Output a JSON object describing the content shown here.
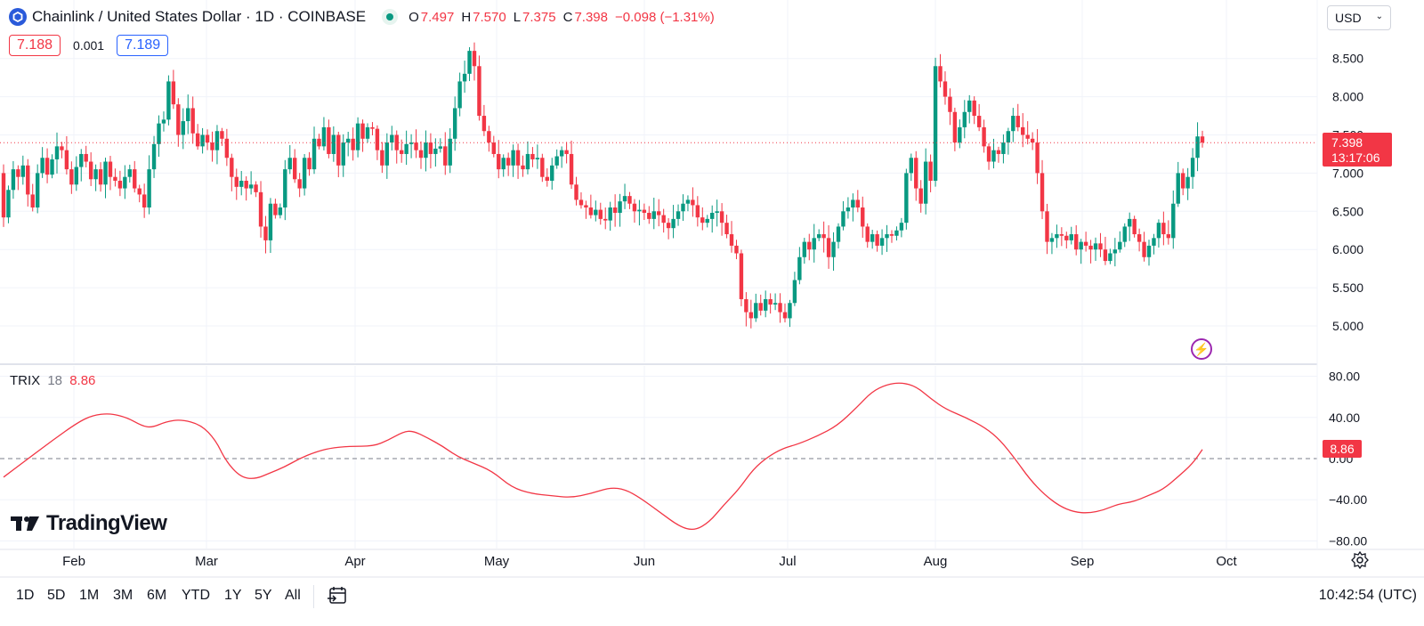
{
  "header": {
    "title": "Chainlink / United States Dollar · 1D · COINBASE",
    "ohlc": [
      {
        "key": "O",
        "value": "7.497"
      },
      {
        "key": "H",
        "value": "7.570"
      },
      {
        "key": "L",
        "value": "7.375"
      },
      {
        "key": "C",
        "value": "7.398"
      }
    ],
    "change": "−0.098 (−1.31%)",
    "status_color": "#089981"
  },
  "price_boxes": {
    "bid": "7.188",
    "spread": "0.001",
    "ask": "7.189"
  },
  "currency": {
    "label": "USD"
  },
  "last_price": {
    "price": "7.398",
    "countdown": "13:17:06"
  },
  "indicator": {
    "name": "TRIX",
    "period": "18",
    "value": "8.86"
  },
  "brand": {
    "name": "TradingView"
  },
  "timeframes": [
    "1D",
    "5D",
    "1M",
    "3M",
    "6M",
    "YTD",
    "1Y",
    "5Y",
    "All"
  ],
  "clock": "10:42:54 (UTC)",
  "colors": {
    "up": "#089981",
    "down": "#f23645",
    "trix": "#f23645"
  },
  "chart_data": [
    {
      "type": "candlestick",
      "title": "Chainlink / United States Dollar · 1D · COINBASE",
      "x_ticks": [
        "Feb",
        "Mar",
        "Apr",
        "May",
        "Jun",
        "Jul",
        "Aug",
        "Sep",
        "Oct"
      ],
      "y_ticks": [
        "5.000",
        "5.500",
        "6.000",
        "6.500",
        "7.000",
        "7.500",
        "8.000",
        "8.500"
      ],
      "ylim": [
        4.6,
        8.85
      ],
      "grid": true,
      "close_start": 7.0,
      "closes": [
        6.42,
        6.78,
        7.05,
        6.95,
        7.1,
        6.72,
        6.55,
        7.0,
        7.2,
        6.98,
        7.18,
        7.35,
        7.3,
        7.05,
        6.85,
        7.08,
        7.25,
        7.15,
        6.92,
        7.05,
        6.85,
        7.15,
        6.95,
        6.9,
        6.8,
        6.95,
        7.05,
        6.8,
        6.72,
        6.55,
        7.05,
        7.38,
        7.65,
        7.7,
        8.2,
        7.9,
        7.5,
        7.68,
        7.85,
        7.52,
        7.35,
        7.5,
        7.4,
        7.3,
        7.55,
        7.45,
        7.2,
        6.95,
        6.82,
        6.9,
        6.8,
        6.85,
        6.75,
        6.3,
        6.12,
        6.6,
        6.45,
        6.55,
        7.05,
        7.2,
        6.92,
        6.8,
        7.2,
        7.05,
        7.45,
        7.35,
        7.6,
        7.25,
        7.5,
        7.1,
        7.4,
        7.45,
        7.3,
        7.65,
        7.45,
        7.6,
        7.58,
        7.3,
        7.1,
        7.4,
        7.5,
        7.3,
        7.25,
        7.38,
        7.4,
        7.3,
        7.2,
        7.4,
        7.25,
        7.32,
        7.35,
        7.1,
        7.45,
        7.85,
        8.2,
        8.3,
        8.6,
        8.4,
        7.75,
        7.55,
        7.4,
        7.25,
        7.05,
        7.2,
        7.1,
        7.3,
        7.1,
        7.05,
        7.25,
        7.18,
        7.2,
        6.95,
        6.9,
        7.1,
        7.22,
        7.3,
        7.25,
        6.85,
        6.65,
        6.58,
        6.55,
        6.45,
        6.52,
        6.4,
        6.38,
        6.55,
        6.48,
        6.63,
        6.7,
        6.6,
        6.5,
        6.52,
        6.48,
        6.4,
        6.5,
        6.45,
        6.35,
        6.28,
        6.4,
        6.5,
        6.6,
        6.65,
        6.58,
        6.42,
        6.35,
        6.4,
        6.48,
        6.5,
        6.35,
        6.2,
        6.05,
        5.95,
        5.35,
        5.18,
        5.1,
        5.3,
        5.2,
        5.35,
        5.28,
        5.3,
        5.18,
        5.1,
        5.3,
        5.6,
        5.9,
        6.1,
        6.0,
        6.15,
        6.2,
        6.15,
        5.9,
        6.1,
        6.3,
        6.5,
        6.55,
        6.65,
        6.55,
        6.3,
        6.1,
        6.2,
        6.05,
        6.15,
        6.2,
        6.18,
        6.25,
        6.35,
        7.0,
        7.2,
        6.8,
        6.6,
        7.15,
        6.9,
        8.4,
        8.2,
        8.0,
        7.8,
        7.4,
        7.6,
        7.8,
        7.95,
        7.75,
        7.6,
        7.35,
        7.15,
        7.3,
        7.25,
        7.4,
        7.55,
        7.75,
        7.6,
        7.5,
        7.45,
        7.4,
        7.0,
        6.5,
        6.1,
        6.15,
        6.2,
        6.18,
        6.12,
        6.2,
        6.0,
        6.1,
        6.05,
        6.0,
        6.08,
        6.0,
        5.85,
        5.95,
        6.0,
        6.1,
        6.3,
        6.4,
        6.2,
        6.1,
        5.9,
        6.05,
        6.15,
        6.35,
        6.2,
        6.15,
        6.6,
        7.0,
        6.8,
        6.95,
        7.2,
        7.48,
        7.4
      ],
      "series": [
        {
          "name": "TRIX",
          "values": []
        }
      ]
    },
    {
      "type": "line",
      "y_ticks": [
        "−80.00",
        "−40.00",
        "0.00",
        "40.00",
        "80.00"
      ],
      "ylim": [
        -90,
        90
      ],
      "trix_points": [
        [
          0,
          -18
        ],
        [
          10,
          0
        ],
        [
          20,
          18
        ],
        [
          30,
          35
        ],
        [
          36,
          42
        ],
        [
          43,
          44
        ],
        [
          50,
          40
        ],
        [
          56,
          32
        ],
        [
          60,
          30
        ],
        [
          66,
          36
        ],
        [
          72,
          38
        ],
        [
          80,
          33
        ],
        [
          86,
          18
        ],
        [
          90,
          -2
        ],
        [
          96,
          -18
        ],
        [
          102,
          -20
        ],
        [
          108,
          -14
        ],
        [
          114,
          -8
        ],
        [
          120,
          0
        ],
        [
          126,
          6
        ],
        [
          132,
          10
        ],
        [
          140,
          12
        ],
        [
          150,
          12
        ],
        [
          156,
          18
        ],
        [
          162,
          26
        ],
        [
          166,
          27
        ],
        [
          172,
          20
        ],
        [
          178,
          12
        ],
        [
          184,
          2
        ],
        [
          190,
          -4
        ],
        [
          198,
          -12
        ],
        [
          206,
          -28
        ],
        [
          214,
          -34
        ],
        [
          222,
          -36
        ],
        [
          230,
          -38
        ],
        [
          238,
          -34
        ],
        [
          246,
          -28
        ],
        [
          252,
          -30
        ],
        [
          258,
          -38
        ],
        [
          266,
          -52
        ],
        [
          274,
          -66
        ],
        [
          280,
          -70
        ],
        [
          286,
          -62
        ],
        [
          292,
          -45
        ],
        [
          298,
          -30
        ],
        [
          304,
          -10
        ],
        [
          310,
          2
        ],
        [
          316,
          10
        ],
        [
          322,
          14
        ],
        [
          330,
          22
        ],
        [
          338,
          32
        ],
        [
          346,
          50
        ],
        [
          352,
          65
        ],
        [
          358,
          72
        ],
        [
          364,
          74
        ],
        [
          370,
          70
        ],
        [
          376,
          58
        ],
        [
          382,
          48
        ],
        [
          390,
          40
        ],
        [
          398,
          30
        ],
        [
          404,
          18
        ],
        [
          410,
          0
        ],
        [
          416,
          -20
        ],
        [
          422,
          -35
        ],
        [
          428,
          -46
        ],
        [
          434,
          -52
        ],
        [
          440,
          -53
        ],
        [
          446,
          -50
        ],
        [
          452,
          -44
        ],
        [
          458,
          -42
        ],
        [
          464,
          -36
        ],
        [
          470,
          -30
        ],
        [
          476,
          -18
        ],
        [
          482,
          -5
        ],
        [
          486,
          8.86
        ]
      ]
    }
  ]
}
